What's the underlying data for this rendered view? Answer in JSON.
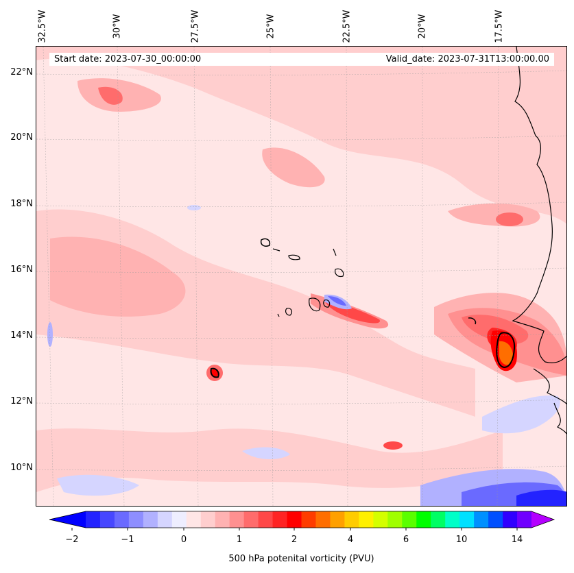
{
  "map": {
    "start_date": "Start date: 2023-07-30_00:00:00",
    "valid_date": "Valid_date: 2023-07-31T13:00:00.00",
    "colorbar_label": "500 hPa potenital vorticity (PVU)",
    "lon_labels": [
      "32.5°W",
      "30°W",
      "27.5°W",
      "25°W",
      "22.5°W",
      "20°W",
      "17.5°W"
    ],
    "lat_labels": [
      "22°N",
      "20°N",
      "18°N",
      "16°N",
      "14°N",
      "12°N",
      "10°N"
    ]
  },
  "colorbar": {
    "tick_labels": [
      "−2",
      "−1",
      "0",
      "1",
      "2",
      "4",
      "6",
      "10",
      "14"
    ],
    "colors": [
      "#0000ff",
      "#2323ff",
      "#4747ff",
      "#6a6aff",
      "#8e8eff",
      "#b1b1ff",
      "#d5d5ff",
      "#eeeeff",
      "#ffe6e6",
      "#ffcece",
      "#ffb2b2",
      "#ff9090",
      "#ff6c6c",
      "#ff4848",
      "#ff2424",
      "#ff0000",
      "#ff3c00",
      "#ff6e00",
      "#ffa000",
      "#ffcc00",
      "#fff000",
      "#d4ff00",
      "#a0ff00",
      "#5aff00",
      "#00ff00",
      "#00ff64",
      "#00ffc8",
      "#00e0ff",
      "#0090ff",
      "#0050ff",
      "#3000ff",
      "#7000ff",
      "#b400ff"
    ]
  },
  "chart_data": {
    "type": "heatmap",
    "title": "500 hPa potential vorticity",
    "colorbar_title": "500 hPa potenital vorticity (PVU)",
    "colorbar_ticks": [
      -2,
      -1,
      0,
      1,
      2,
      4,
      6,
      10,
      14
    ],
    "colorbar_extend": "both",
    "lon_range": [
      -33,
      -15.5
    ],
    "lat_range": [
      8.8,
      22.8
    ],
    "x_ticks": [
      "32.5°W",
      "30°W",
      "27.5°W",
      "25°W",
      "22.5°W",
      "20°W",
      "17.5°W"
    ],
    "y_ticks": [
      "22°N",
      "20°N",
      "18°N",
      "16°N",
      "14°N",
      "12°N",
      "10°N"
    ],
    "features": [
      {
        "name": "Cape Verde positive PV streak",
        "lon": -22.5,
        "lat": 14.8,
        "value": 2
      },
      {
        "name": "Negative PV near Cape Verde",
        "lon": -23.2,
        "lat": 15.1,
        "value": -2
      },
      {
        "name": "Senegal coast maximum",
        "lon": -16.4,
        "lat": 13.6,
        "value": 4
      },
      {
        "name": "Isolated maximum",
        "lon": -27.2,
        "lat": 12.9,
        "value": 2
      },
      {
        "name": "Southeast negative band",
        "lon": -17.5,
        "lat": 9.5,
        "value": -2
      }
    ]
  }
}
